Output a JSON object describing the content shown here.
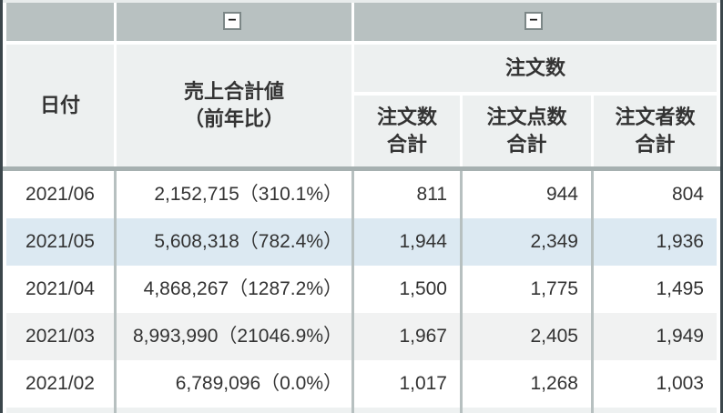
{
  "colors": {
    "frame": "#3b464b",
    "collapse_band_bg": "#b8c1c1",
    "header_bg": "#edf0f0",
    "row_stripe_blue": "#dce9f2",
    "row_stripe_gray": "#f1f2f2",
    "column_separator": "#b7c0c0",
    "header_separator": "#a6b0b0",
    "text": "#333333"
  },
  "collapse": {
    "sales_button_label": "−",
    "orders_button_label": "−"
  },
  "table": {
    "headers": {
      "date": "日付",
      "sales_line1": "売上合計値",
      "sales_line2": "（前年比）",
      "orders_group": "注文数",
      "orders_total_line1": "注文数",
      "orders_total_line2": "合計",
      "items_total_line1": "注文点数",
      "items_total_line2": "合計",
      "buyers_total_line1": "注文者数",
      "buyers_total_line2": "合計"
    },
    "rows": [
      {
        "date": "2021/06",
        "sales": "2,152,715（310.1%）",
        "orders": "811",
        "items": "944",
        "buyers": "804"
      },
      {
        "date": "2021/05",
        "sales": "5,608,318（782.4%）",
        "orders": "1,944",
        "items": "2,349",
        "buyers": "1,936"
      },
      {
        "date": "2021/04",
        "sales": "4,868,267（1287.2%）",
        "orders": "1,500",
        "items": "1,775",
        "buyers": "1,495"
      },
      {
        "date": "2021/03",
        "sales": "8,993,990（21046.9%）",
        "orders": "1,967",
        "items": "2,405",
        "buyers": "1,949"
      },
      {
        "date": "2021/02",
        "sales": "6,789,096（0.0%）",
        "orders": "1,017",
        "items": "1,268",
        "buyers": "1,003"
      }
    ]
  }
}
